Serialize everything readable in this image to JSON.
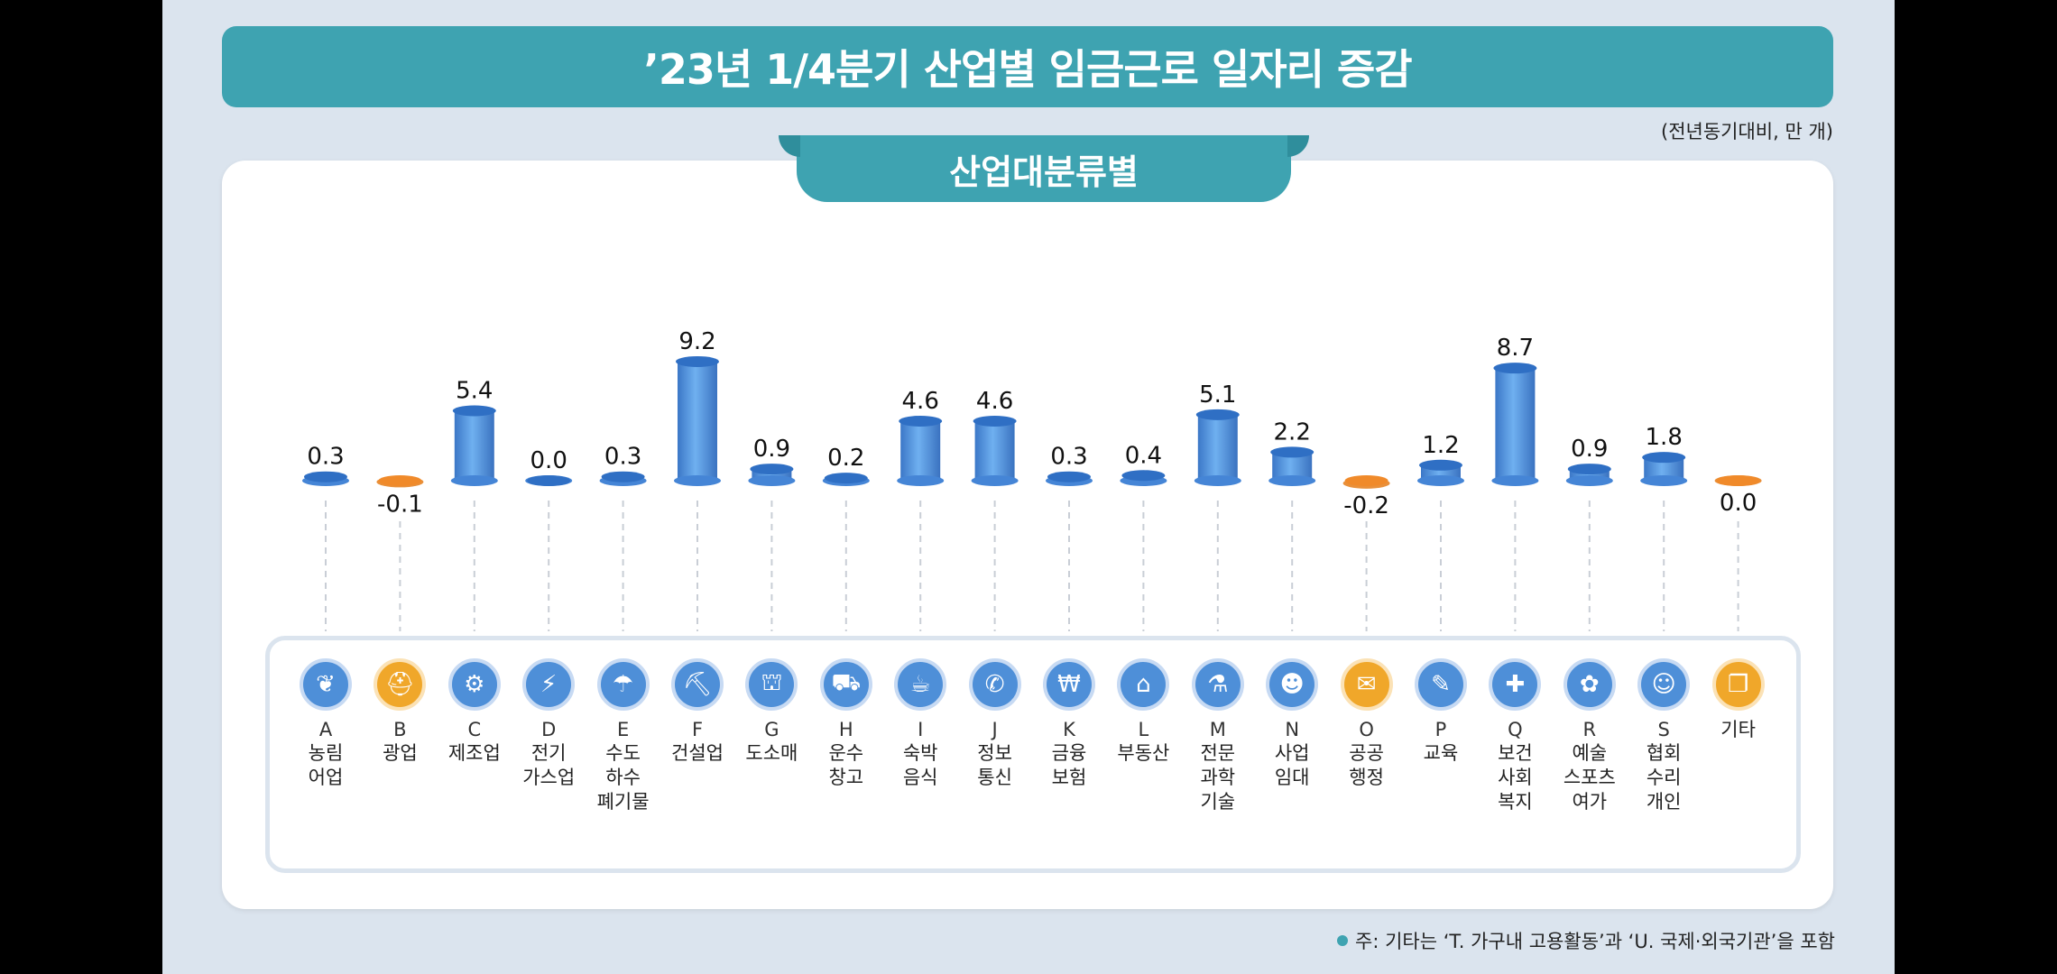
{
  "title": "’23년 1/4분기 산업별 임금근로 일자리 증감",
  "unit_note": "(전년동기대비, 만 개)",
  "subtitle": "산업대분류별",
  "footnote": "주: 기타는 ‘T. 가구내 고용활동’과 ‘U. 국제·외국기관’을 포함",
  "colors": {
    "positive": "#4e8fd8",
    "negative": "#f0a72a",
    "accent": "#3ea3b1"
  },
  "chart_data": {
    "type": "bar",
    "title": "’23년 1/4분기 산업별 임금근로 일자리 증감",
    "subtitle": "산업대분류별",
    "unit": "(전년동기대비, 만 개)",
    "categories": [
      "A",
      "B",
      "C",
      "D",
      "E",
      "F",
      "G",
      "H",
      "I",
      "J",
      "K",
      "L",
      "M",
      "N",
      "O",
      "P",
      "Q",
      "R",
      "S",
      "기타"
    ],
    "category_labels": [
      "농림\n어업",
      "광업",
      "제조업",
      "전기\n가스업",
      "수도\n하수\n폐기물",
      "건설업",
      "도소매",
      "운수\n창고",
      "숙박\n음식",
      "정보\n통신",
      "금융\n보험",
      "부동산",
      "전문\n과학\n기술",
      "사업\n임대",
      "공공\n행정",
      "교육",
      "보건\n사회\n복지",
      "예술\n스포츠\n여가",
      "협회\n수리\n개인",
      "기타"
    ],
    "value_labels": [
      "0.3",
      "-0.1",
      "5.4",
      "0.0",
      "0.3",
      "9.2",
      "0.9",
      "0.2",
      "4.6",
      "4.6",
      "0.3",
      "0.4",
      "5.1",
      "2.2",
      "-0.2",
      "1.2",
      "8.7",
      "0.9",
      "1.8",
      "0.0"
    ],
    "values": [
      0.3,
      -0.1,
      5.4,
      0.0,
      0.3,
      9.2,
      0.9,
      0.2,
      4.6,
      4.6,
      0.3,
      0.4,
      5.1,
      2.2,
      -0.2,
      1.2,
      8.7,
      0.9,
      1.8,
      0.0
    ],
    "value_signs": [
      "pos",
      "neg",
      "pos",
      "pos",
      "pos",
      "pos",
      "pos",
      "pos",
      "pos",
      "pos",
      "pos",
      "pos",
      "pos",
      "pos",
      "neg",
      "pos",
      "pos",
      "pos",
      "pos",
      "neg"
    ],
    "icons": [
      "wheat-icon",
      "helmet-icon",
      "gears-icon",
      "lightning-icon",
      "faucet-icon",
      "excavator-icon",
      "basket-icon",
      "truck-icon",
      "dining-icon",
      "phone-icon",
      "bank-card-icon",
      "house-icon",
      "flask-icon",
      "handshake-icon",
      "scroll-icon",
      "graduation-cap-icon",
      "first-aid-icon",
      "palette-icon",
      "people-icon",
      "document-icon"
    ],
    "icon_glyphs": [
      "❦",
      "⛑",
      "⚙",
      "⚡",
      "☂",
      "⛏",
      "⛫",
      "⛟",
      "☕",
      "✆",
      "₩",
      "⌂",
      "⚗",
      "☻",
      "✉",
      "✎",
      "✚",
      "✿",
      "☺",
      "❐"
    ],
    "legend": "none",
    "grid": false
  }
}
